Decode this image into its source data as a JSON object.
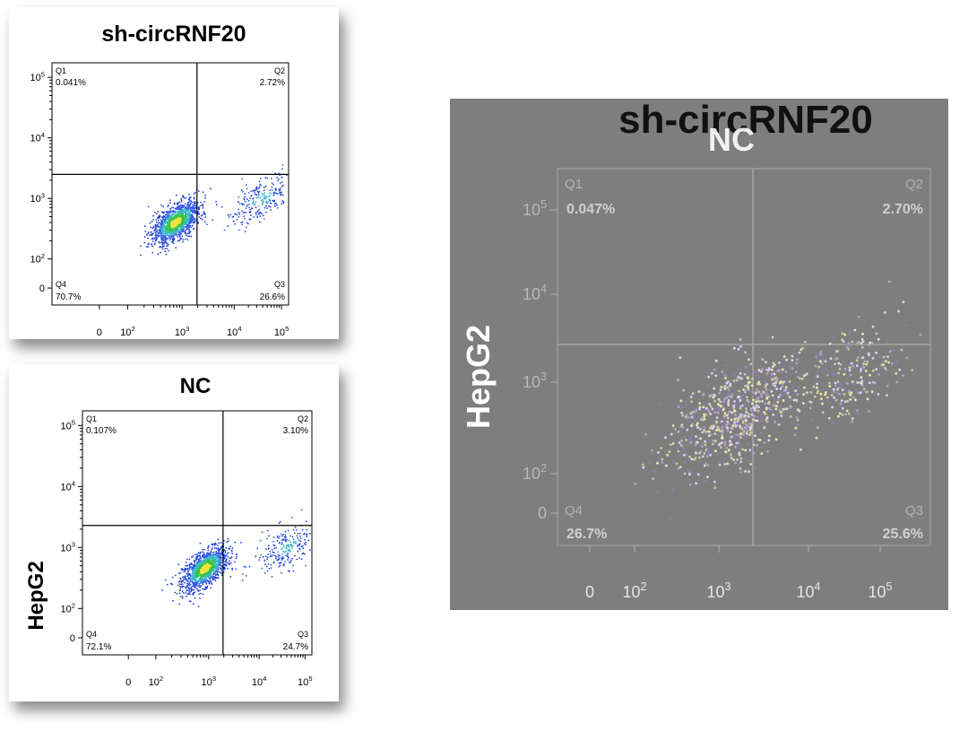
{
  "chart_data": [
    {
      "type": "scatter",
      "id": "top",
      "title": "sh-circRNF20",
      "ylabel": "",
      "x_ticks": [
        "0",
        "10^2",
        "10^3",
        "10^4",
        "10^5"
      ],
      "y_ticks": [
        "0",
        "10^2",
        "10^3",
        "10^4",
        "10^5"
      ],
      "gate": {
        "x": 2000,
        "y": 2500
      },
      "quadrants": [
        {
          "name": "Q1",
          "percent": "0.041%"
        },
        {
          "name": "Q2",
          "percent": "2.72%"
        },
        {
          "name": "Q3",
          "percent": "26.6%"
        },
        {
          "name": "Q4",
          "percent": "70.7%"
        }
      ],
      "populations": [
        {
          "x": 800,
          "y": 400,
          "count": 1300,
          "spread": 0.2
        },
        {
          "x": 35000,
          "y": 1000,
          "count": 260,
          "spread": 0.25
        }
      ]
    },
    {
      "type": "scatter",
      "id": "bottom",
      "title": "NC",
      "ylabel": "HepG2",
      "x_ticks": [
        "0",
        "10^2",
        "10^3",
        "10^4",
        "10^5"
      ],
      "y_ticks": [
        "0",
        "10^2",
        "10^3",
        "10^4",
        "10^5"
      ],
      "gate": {
        "x": 2000,
        "y": 2300
      },
      "quadrants": [
        {
          "name": "Q1",
          "percent": "0.107%"
        },
        {
          "name": "Q2",
          "percent": "3.10%"
        },
        {
          "name": "Q3",
          "percent": "24.7%"
        },
        {
          "name": "Q4",
          "percent": "72.1%"
        }
      ],
      "populations": [
        {
          "x": 900,
          "y": 450,
          "count": 1300,
          "spread": 0.2
        },
        {
          "x": 35000,
          "y": 1000,
          "count": 240,
          "spread": 0.25
        }
      ]
    }
  ],
  "overlay": {
    "title_a": "sh-circRNF20",
    "title_b": "NC",
    "ylabel": "HepG2",
    "x_ticks": [
      "0",
      "10^2",
      "10^3",
      "10^4",
      "10^5"
    ],
    "y_ticks": [
      "0",
      "10^2",
      "10^3",
      "10^4",
      "10^5"
    ],
    "quad_labels": [
      "Q1",
      "Q2",
      "Q3",
      "Q4"
    ],
    "percent_q1": "0.047%",
    "percent_q2": "2.70%",
    "percent_q3": "25.6%",
    "percent_q4": "26.7%",
    "colors": {
      "background": "#7e7e7e",
      "dots": [
        "#c9c9a0",
        "#b0a3c8",
        "#e8e6b0",
        "#8c7fb0",
        "#d8d0ff"
      ]
    }
  }
}
